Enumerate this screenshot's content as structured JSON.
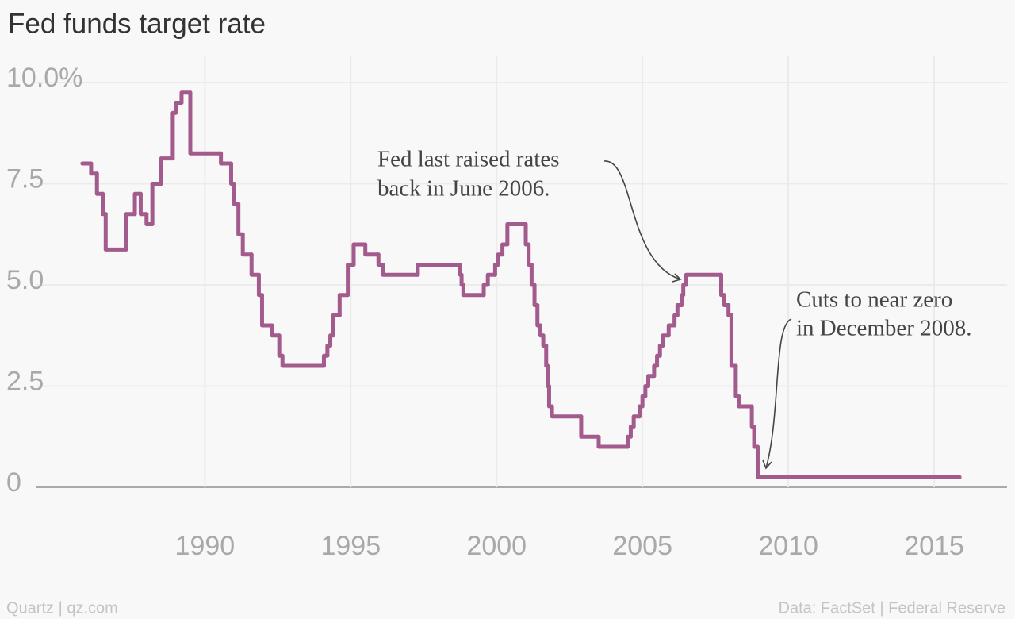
{
  "chart_data": {
    "type": "line",
    "step": "post",
    "title": "Fed funds target rate",
    "source_left": "Quartz | qz.com",
    "source_right": "Data: FactSet | Federal Reserve",
    "annotations": [
      {
        "lines": [
          "Fed last raised rates",
          "back in June 2006."
        ]
      },
      {
        "lines": [
          "Cuts to near zero",
          "in December 2008."
        ]
      }
    ],
    "color": "#a35a8c",
    "grid": true,
    "xlim": [
      1984.2,
      2017.5
    ],
    "xticks": [
      1990,
      1995,
      2000,
      2005,
      2010,
      2015
    ],
    "ylim": [
      0,
      10
    ],
    "yticks": [
      0,
      2.5,
      {
        "value": 5,
        "label": "5.0"
      },
      7.5,
      {
        "value": 10,
        "label": "10.0%"
      }
    ],
    "x": [
      1985.8,
      1986.1,
      1986.3,
      1986.5,
      1986.6,
      1987.3,
      1987.6,
      1987.8,
      1988.0,
      1988.2,
      1988.5,
      1988.9,
      1989.0,
      1989.2,
      1989.5,
      1990.55,
      1990.9,
      1991.0,
      1991.15,
      1991.3,
      1991.6,
      1991.85,
      1991.96,
      1992.3,
      1992.55,
      1992.66,
      1994.08,
      1994.2,
      1994.3,
      1994.4,
      1994.62,
      1994.9,
      1995.1,
      1995.5,
      1995.95,
      1996.1,
      1997.3,
      1998.75,
      1998.8,
      1998.86,
      1999.56,
      1999.7,
      1999.95,
      2000.05,
      2000.2,
      2000.37,
      2001.0,
      2001.1,
      2001.2,
      2001.3,
      2001.4,
      2001.5,
      2001.6,
      2001.7,
      2001.75,
      2001.8,
      2001.9,
      2002.9,
      2003.5,
      2004.5,
      2004.6,
      2004.7,
      2004.9,
      2005.0,
      2005.1,
      2005.2,
      2005.4,
      2005.5,
      2005.6,
      2005.7,
      2005.9,
      2006.1,
      2006.2,
      2006.35,
      2006.4,
      2006.5,
      2007.7,
      2007.8,
      2007.95,
      2008.05,
      2008.2,
      2008.3,
      2008.75,
      2008.83,
      2008.95,
      2015.87
    ],
    "values": [
      8.0,
      7.75,
      7.25,
      6.75,
      5.875,
      6.75,
      7.25,
      6.75,
      6.5,
      7.5,
      8.125,
      9.25,
      9.5,
      9.75,
      8.25,
      8.0,
      7.5,
      7.0,
      6.25,
      5.75,
      5.25,
      4.75,
      4.0,
      3.75,
      3.25,
      3.0,
      3.25,
      3.5,
      3.75,
      4.25,
      4.75,
      5.5,
      6.0,
      5.75,
      5.5,
      5.25,
      5.5,
      5.25,
      5.0,
      4.75,
      5.0,
      5.25,
      5.5,
      5.75,
      6.0,
      6.5,
      6.0,
      5.5,
      5.0,
      4.5,
      4.0,
      3.75,
      3.5,
      3.0,
      2.5,
      2.0,
      1.75,
      1.25,
      1.0,
      1.25,
      1.5,
      1.75,
      2.0,
      2.25,
      2.5,
      2.75,
      3.0,
      3.25,
      3.5,
      3.75,
      4.0,
      4.25,
      4.5,
      4.75,
      5.0,
      5.25,
      4.75,
      4.5,
      4.25,
      3.0,
      2.25,
      2.0,
      1.5,
      1.0,
      0.25,
      0.25
    ]
  }
}
